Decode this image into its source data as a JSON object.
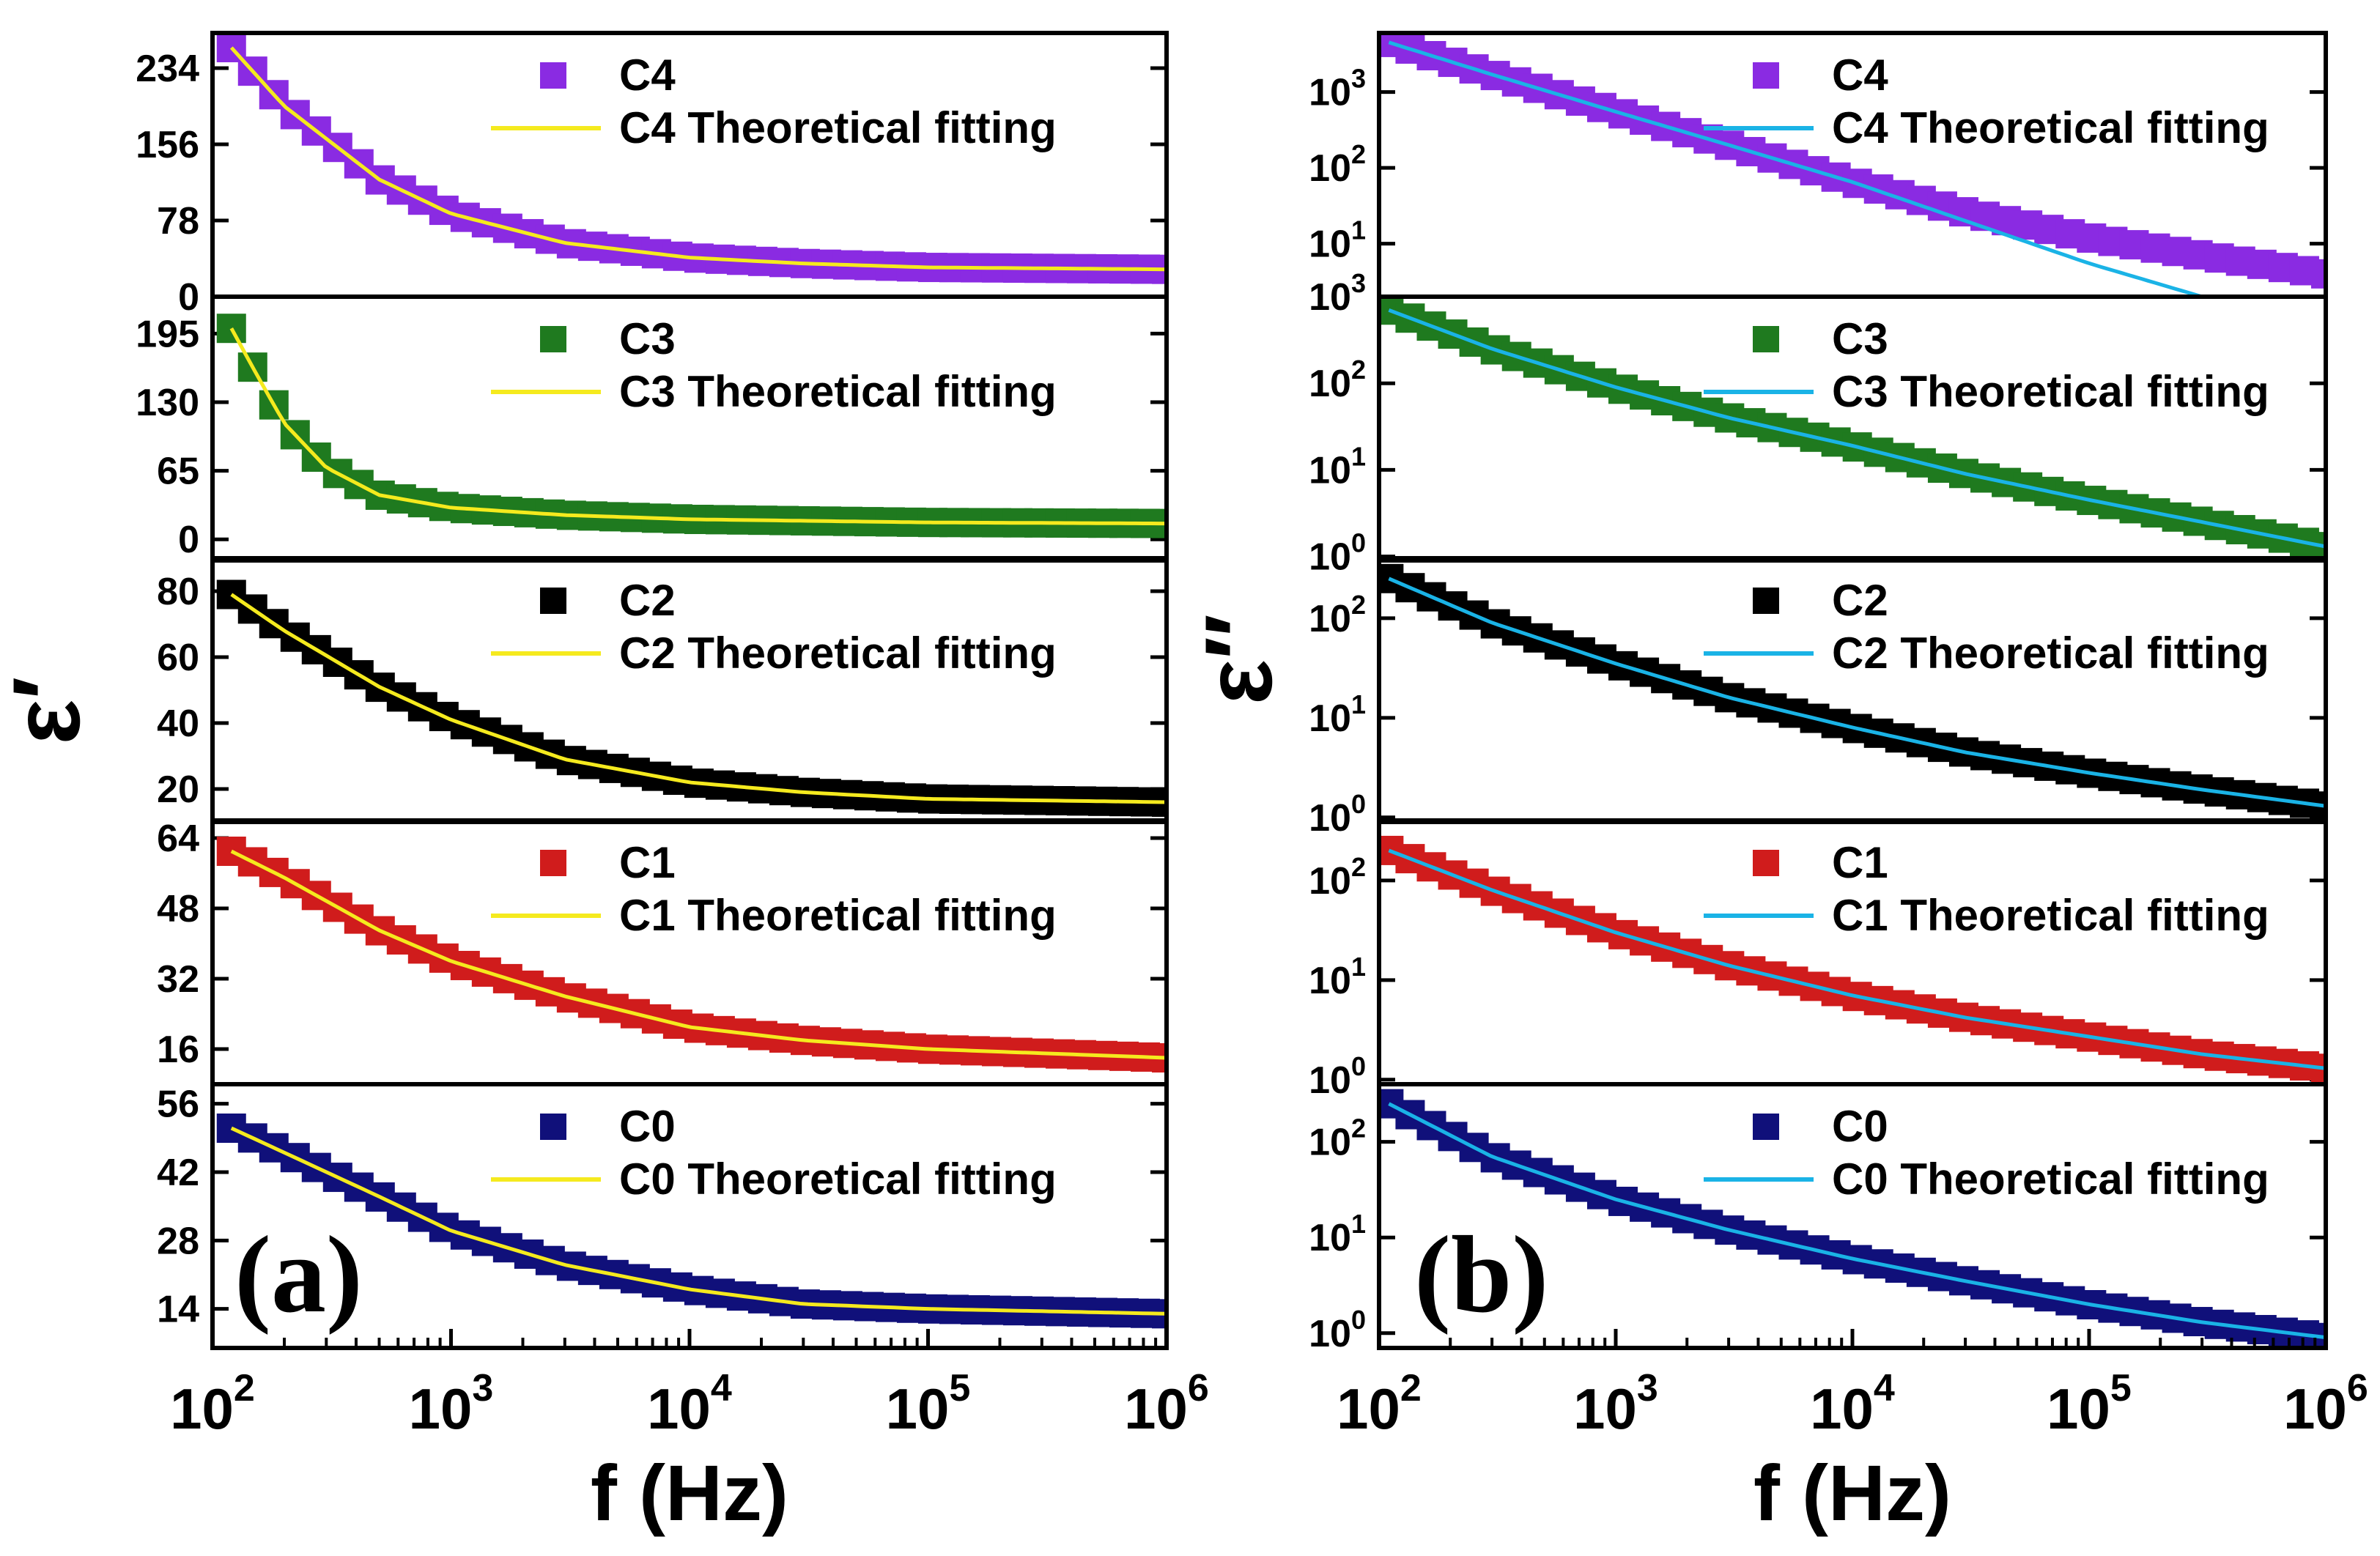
{
  "chart_data": [
    {
      "type": "scatter",
      "panel_label": "(a)",
      "xlabel": "f (Hz)",
      "ylabel": "ε′",
      "x_scale": "log",
      "x_ticks": [
        "10^2",
        "10^3",
        "10^4",
        "10^5",
        "10^6"
      ],
      "xlim": [
        100,
        1000000
      ],
      "subplots": [
        {
          "id": "C4",
          "marker_color": "#8a2be2",
          "fit_color": "#f5ea1e",
          "ylim": [
            0,
            270
          ],
          "yticks": [
            0,
            78,
            156,
            234
          ],
          "series": [
            {
              "name": "C4",
              "x": [
                120,
                200,
                500,
                1000,
                3000,
                10000,
                30000,
                100000,
                1000000
              ],
              "y": [
                255,
                195,
                120,
                85,
                55,
                40,
                34,
                30,
                28
              ]
            },
            {
              "name": "C4 Theoretical fitting",
              "x": [
                120,
                200,
                500,
                1000,
                3000,
                10000,
                30000,
                100000,
                1000000
              ],
              "y": [
                255,
                195,
                120,
                85,
                55,
                40,
                34,
                30,
                28
              ]
            }
          ]
        },
        {
          "id": "C3",
          "marker_color": "#1f7a1f",
          "fit_color": "#f5ea1e",
          "ylim": [
            -20,
            230
          ],
          "yticks": [
            0,
            65,
            130,
            195
          ],
          "series": [
            {
              "name": "C3",
              "x": [
                120,
                150,
                200,
                300,
                500,
                1000,
                3000,
                10000,
                100000,
                1000000
              ],
              "y": [
                200,
                160,
                110,
                68,
                42,
                30,
                23,
                19,
                16,
                15
              ]
            },
            {
              "name": "C3 Theoretical fitting",
              "x": [
                120,
                150,
                200,
                300,
                500,
                1000,
                3000,
                10000,
                100000,
                1000000
              ],
              "y": [
                200,
                160,
                110,
                68,
                42,
                30,
                23,
                19,
                16,
                15
              ]
            }
          ]
        },
        {
          "id": "C2",
          "marker_color": "#000000",
          "fit_color": "#f5ea1e",
          "ylim": [
            10,
            90
          ],
          "yticks": [
            20,
            40,
            60,
            80
          ],
          "series": [
            {
              "name": "C2",
              "x": [
                120,
                200,
                500,
                1000,
                3000,
                10000,
                30000,
                100000,
                1000000
              ],
              "y": [
                79,
                68,
                51,
                41,
                29,
                22,
                19,
                17,
                16
              ]
            },
            {
              "name": "C2 Theoretical fitting",
              "x": [
                120,
                200,
                500,
                1000,
                3000,
                10000,
                30000,
                100000,
                1000000
              ],
              "y": [
                79,
                68,
                51,
                41,
                29,
                22,
                19,
                17,
                16
              ]
            }
          ]
        },
        {
          "id": "C1",
          "marker_color": "#d01c1c",
          "fit_color": "#f5ea1e",
          "ylim": [
            8,
            68
          ],
          "yticks": [
            16,
            32,
            48,
            64
          ],
          "series": [
            {
              "name": "C1",
              "x": [
                120,
                200,
                500,
                1000,
                3000,
                10000,
                30000,
                100000,
                1000000
              ],
              "y": [
                61,
                55,
                43,
                36,
                28,
                21,
                18,
                16,
                14
              ]
            },
            {
              "name": "C1 Theoretical fitting",
              "x": [
                120,
                200,
                500,
                1000,
                3000,
                10000,
                30000,
                100000,
                1000000
              ],
              "y": [
                61,
                55,
                43,
                36,
                28,
                21,
                18,
                16,
                14
              ]
            }
          ]
        },
        {
          "id": "C0",
          "marker_color": "#10107a",
          "fit_color": "#f5ea1e",
          "ylim": [
            6,
            60
          ],
          "yticks": [
            14,
            28,
            42,
            56
          ],
          "series": [
            {
              "name": "C0",
              "x": [
                120,
                200,
                500,
                1000,
                3000,
                10000,
                30000,
                100000,
                1000000
              ],
              "y": [
                51,
                46,
                37,
                30,
                23,
                18,
                15,
                14,
                13
              ]
            },
            {
              "name": "C0 Theoretical fitting",
              "x": [
                120,
                200,
                500,
                1000,
                3000,
                10000,
                30000,
                100000,
                1000000
              ],
              "y": [
                51,
                46,
                37,
                30,
                23,
                18,
                15,
                14,
                13
              ]
            }
          ]
        }
      ]
    },
    {
      "type": "scatter",
      "panel_label": "(b)",
      "xlabel": "f (Hz)",
      "ylabel": "ε″",
      "x_scale": "log",
      "y_scale": "log",
      "x_ticks": [
        "10^2",
        "10^3",
        "10^4",
        "10^5",
        "10^6"
      ],
      "xlim": [
        100,
        1000000
      ],
      "subplots": [
        {
          "id": "C4",
          "marker_color": "#8a2be2",
          "fit_color": "#1ab3e6",
          "ylim": [
            2,
            6000
          ],
          "yticks": [
            10,
            100,
            1000
          ],
          "series": [
            {
              "name": "C4",
              "x": [
                110,
                300,
                1000,
                3000,
                10000,
                30000,
                100000,
                300000,
                1000000
              ],
              "y": [
                4500,
                1700,
                550,
                200,
                65,
                26,
                12,
                7,
                4
              ]
            },
            {
              "name": "C4 Theoretical fitting",
              "x": [
                110,
                300,
                1000,
                3000,
                10000,
                30000,
                100000,
                300000
              ],
              "y": [
                4500,
                1700,
                550,
                200,
                65,
                20,
                5.5,
                2
              ]
            }
          ]
        },
        {
          "id": "C3",
          "marker_color": "#1f7a1f",
          "fit_color": "#1ab3e6",
          "ylim": [
            0.9,
            1000
          ],
          "yticks": [
            1,
            10,
            100,
            1000
          ],
          "series": [
            {
              "name": "C3",
              "x": [
                110,
                300,
                1000,
                3000,
                10000,
                30000,
                100000,
                300000,
                1000000
              ],
              "y": [
                700,
                250,
                90,
                40,
                19,
                9,
                4.5,
                2.5,
                1.3
              ]
            },
            {
              "name": "C3 Theoretical fitting",
              "x": [
                110,
                300,
                1000,
                3000,
                10000,
                30000,
                100000,
                300000,
                1000000
              ],
              "y": [
                700,
                250,
                90,
                40,
                19,
                9,
                4.5,
                2.5,
                1.3
              ]
            }
          ]
        },
        {
          "id": "C2",
          "marker_color": "#000000",
          "fit_color": "#1ab3e6",
          "ylim": [
            0.9,
            400
          ],
          "yticks": [
            1,
            10,
            100
          ],
          "series": [
            {
              "name": "C2",
              "x": [
                110,
                300,
                1000,
                3000,
                10000,
                30000,
                100000,
                300000,
                1000000
              ],
              "y": [
                250,
                90,
                35,
                16,
                8,
                4.5,
                2.8,
                1.9,
                1.3
              ]
            },
            {
              "name": "C2 Theoretical fitting",
              "x": [
                110,
                300,
                1000,
                3000,
                10000,
                30000,
                100000,
                300000,
                1000000
              ],
              "y": [
                250,
                90,
                35,
                16,
                8,
                4.5,
                2.8,
                1.9,
                1.3
              ]
            }
          ]
        },
        {
          "id": "C1",
          "marker_color": "#d01c1c",
          "fit_color": "#1ab3e6",
          "ylim": [
            0.9,
            400
          ],
          "yticks": [
            1,
            10,
            100
          ],
          "series": [
            {
              "name": "C1",
              "x": [
                110,
                300,
                1000,
                3000,
                10000,
                30000,
                100000,
                300000,
                1000000
              ],
              "y": [
                200,
                80,
                30,
                14,
                7,
                4.2,
                2.7,
                1.8,
                1.3
              ]
            },
            {
              "name": "C1 Theoretical fitting",
              "x": [
                110,
                300,
                1000,
                3000,
                10000,
                30000,
                100000,
                300000,
                1000000
              ],
              "y": [
                200,
                80,
                30,
                14,
                7,
                4.2,
                2.7,
                1.8,
                1.3
              ]
            }
          ]
        },
        {
          "id": "C0",
          "marker_color": "#10107a",
          "fit_color": "#1ab3e6",
          "ylim": [
            0.7,
            400
          ],
          "yticks": [
            1,
            10,
            100
          ],
          "series": [
            {
              "name": "C0",
              "x": [
                110,
                300,
                1000,
                3000,
                10000,
                30000,
                100000,
                300000,
                1000000
              ],
              "y": [
                250,
                70,
                25,
                12,
                6,
                3.5,
                2.0,
                1.3,
                0.9
              ]
            },
            {
              "name": "C0 Theoretical fitting",
              "x": [
                110,
                300,
                1000,
                3000,
                10000,
                30000,
                100000,
                300000,
                1000000
              ],
              "y": [
                250,
                70,
                25,
                12,
                6,
                3.5,
                2.0,
                1.3,
                0.9
              ]
            }
          ]
        }
      ]
    }
  ]
}
